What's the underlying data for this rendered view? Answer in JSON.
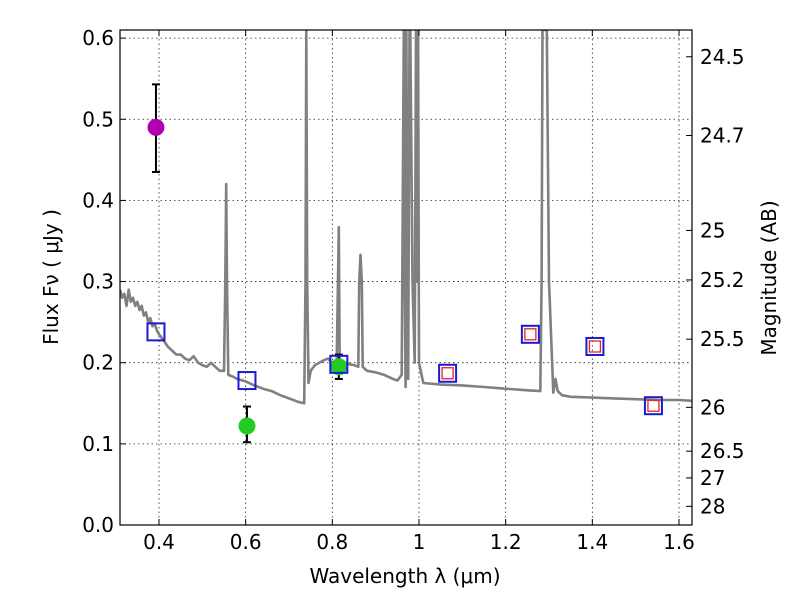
{
  "chart_data": {
    "type": "scatter",
    "xlabel": "Wavelength  λ (μm)",
    "ylabel": "Flux  Fν  ( μJy )",
    "y2label": "Magnitude (AB)",
    "xlim": [
      0.31,
      1.63
    ],
    "ylim": [
      0.0,
      0.61
    ],
    "xticks": [
      "0.4",
      "0.6",
      "0.8",
      "1",
      "1.2",
      "1.4",
      "1.6"
    ],
    "xtick_values": [
      0.4,
      0.6,
      0.8,
      1.0,
      1.2,
      1.4,
      1.6
    ],
    "yticks": [
      "0.0",
      "0.1",
      "0.2",
      "0.3",
      "0.4",
      "0.5",
      "0.6"
    ],
    "ytick_values": [
      0.0,
      0.1,
      0.2,
      0.3,
      0.4,
      0.5,
      0.6
    ],
    "y2ticks": [
      {
        "label": "24.5",
        "flux": 0.577
      },
      {
        "label": "24.7",
        "flux": 0.48
      },
      {
        "label": "25",
        "flux": 0.363
      },
      {
        "label": "25.2",
        "flux": 0.302
      },
      {
        "label": "25.5",
        "flux": 0.229
      },
      {
        "label": "26",
        "flux": 0.145
      },
      {
        "label": "26.5",
        "flux": 0.091
      },
      {
        "label": "27",
        "flux": 0.058
      },
      {
        "label": "28",
        "flux": 0.023
      }
    ],
    "grid": true,
    "colors": {
      "sed": "#808080",
      "magenta": "#b000b0",
      "green": "#22cc22",
      "square_outer": "#1a1ad6",
      "square_inner": "#e82020",
      "error_bar": "#000000"
    },
    "series": [
      {
        "kind": "line",
        "x": [
          0.31,
          0.315,
          0.32,
          0.325,
          0.33,
          0.335,
          0.34,
          0.345,
          0.35,
          0.355,
          0.36,
          0.365,
          0.37,
          0.375,
          0.38,
          0.385,
          0.39,
          0.395,
          0.4,
          0.41,
          0.42,
          0.43,
          0.44,
          0.45,
          0.46,
          0.47,
          0.48,
          0.49,
          0.5,
          0.51,
          0.52,
          0.53,
          0.54,
          0.55,
          0.553,
          0.555,
          0.557,
          0.56,
          0.57,
          0.58,
          0.6,
          0.62,
          0.64,
          0.66,
          0.68,
          0.7,
          0.72,
          0.735,
          0.738,
          0.74,
          0.742,
          0.745,
          0.75,
          0.76,
          0.77,
          0.78,
          0.79,
          0.8,
          0.81,
          0.815,
          0.817,
          0.82,
          0.83,
          0.84,
          0.85,
          0.86,
          0.862,
          0.865,
          0.868,
          0.87,
          0.88,
          0.9,
          0.92,
          0.94,
          0.95,
          0.96,
          0.965,
          0.967,
          0.969,
          0.971,
          0.973,
          0.975,
          0.978,
          0.98,
          0.985,
          0.99,
          0.993,
          0.995,
          0.998,
          1.0,
          1.01,
          1.05,
          1.1,
          1.15,
          1.2,
          1.25,
          1.28,
          1.283,
          1.285,
          1.29,
          1.295,
          1.3,
          1.31,
          1.315,
          1.32,
          1.33,
          1.35,
          1.4,
          1.45,
          1.5,
          1.55,
          1.6,
          1.63
        ],
        "y": [
          0.29,
          0.28,
          0.285,
          0.27,
          0.29,
          0.275,
          0.28,
          0.27,
          0.275,
          0.265,
          0.27,
          0.258,
          0.262,
          0.25,
          0.255,
          0.245,
          0.248,
          0.24,
          0.235,
          0.228,
          0.22,
          0.215,
          0.21,
          0.21,
          0.205,
          0.203,
          0.208,
          0.2,
          0.197,
          0.195,
          0.2,
          0.195,
          0.19,
          0.19,
          0.3,
          0.42,
          0.3,
          0.185,
          0.183,
          0.18,
          0.177,
          0.172,
          0.168,
          0.165,
          0.16,
          0.156,
          0.152,
          0.15,
          0.3,
          0.61,
          0.3,
          0.175,
          0.19,
          0.197,
          0.2,
          0.203,
          0.205,
          0.2,
          0.2,
          0.367,
          0.2,
          0.203,
          0.2,
          0.198,
          0.197,
          0.195,
          0.3,
          0.333,
          0.3,
          0.195,
          0.19,
          0.188,
          0.185,
          0.18,
          0.178,
          0.185,
          0.61,
          0.3,
          0.17,
          0.61,
          0.3,
          0.18,
          0.61,
          0.61,
          0.3,
          0.2,
          0.61,
          0.3,
          0.61,
          0.2,
          0.175,
          0.173,
          0.172,
          0.17,
          0.168,
          0.166,
          0.165,
          0.3,
          0.61,
          0.61,
          0.61,
          0.3,
          0.163,
          0.18,
          0.165,
          0.16,
          0.158,
          0.157,
          0.156,
          0.155,
          0.154,
          0.154,
          0.153
        ]
      },
      {
        "kind": "point-errorbar",
        "x": [
          0.393
        ],
        "y": [
          0.49
        ],
        "err_low": [
          0.435
        ],
        "err_high": [
          0.543
        ]
      },
      {
        "kind": "point-errorbar",
        "x": [
          0.603,
          0.815
        ],
        "y": [
          0.122,
          0.195
        ],
        "err_low": [
          0.102,
          0.18
        ],
        "err_high": [
          0.146,
          0.21
        ]
      },
      {
        "kind": "square-blue",
        "x": [
          0.393,
          0.603,
          0.815
        ],
        "y": [
          0.238,
          0.178,
          0.198
        ]
      },
      {
        "kind": "square-blue-red",
        "x": [
          1.066,
          1.257,
          1.406,
          1.541
        ],
        "y": [
          0.187,
          0.235,
          0.22,
          0.147
        ]
      }
    ]
  }
}
